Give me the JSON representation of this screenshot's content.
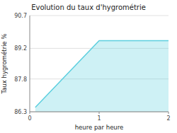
{
  "chart_data": {
    "type": "area",
    "title": "Evolution du taux d'hygrométrie",
    "x_label": "heure par heure",
    "y_label": "Taux hygrométrie %",
    "x": [
      0.08,
      1.0,
      2.0
    ],
    "values": [
      86.5,
      89.55,
      89.55
    ],
    "xlim": [
      0,
      2
    ],
    "ylim": [
      86.3,
      90.7
    ],
    "xticks": [
      0,
      1,
      2
    ],
    "yticks": [
      86.3,
      87.8,
      89.2,
      90.7
    ],
    "color": "#5ccfdf",
    "grid": true
  }
}
